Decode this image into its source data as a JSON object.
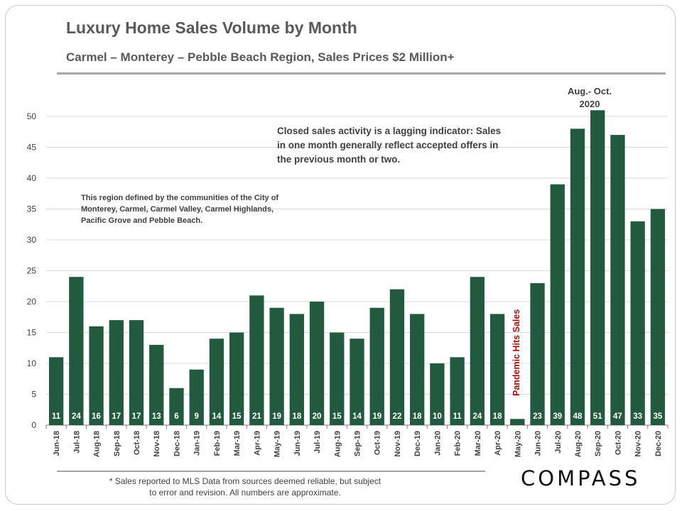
{
  "header": {
    "title": "Luxury Home Sales Volume by Month",
    "subtitle": "Carmel – Monterey – Pebble Beach Region, Sales Prices $2 Million+"
  },
  "annotations": {
    "lagging": "Closed sales activity is a lagging indicator: Sales in one month generally reflect accepted offers in the previous month or two.",
    "region": "This region defined by the communities of the City of Monterey, Carmel, Carmel Valley, Carmel Highlands, Pacific Grove and Pebble Beach.",
    "pandemic": "Pandemic Hits Sales",
    "peak_line1": "Aug.- Oct.",
    "peak_line2": "2020"
  },
  "footer": {
    "footnote": "* Sales reported to MLS Data from sources deemed reliable, but subject to error and revision. All numbers are approximate.",
    "logo": "COMPASS"
  },
  "colors": {
    "bar": "#215a3f",
    "pandemic_text": "#a50d0d"
  },
  "chart_data": {
    "type": "bar",
    "title": "Luxury Home Sales Volume by Month",
    "subtitle": "Carmel – Monterey – Pebble Beach Region, Sales Prices $2 Million+",
    "categories": [
      "Jun-18",
      "Jul-18",
      "Aug-18",
      "Sep-18",
      "Oct-18",
      "Nov-18",
      "Dec-18",
      "Jan-19",
      "Feb-19",
      "Mar-19",
      "Apr-19",
      "May-19",
      "Jun-19",
      "Jul-19",
      "Aug-19",
      "Sep-19",
      "Oct-19",
      "Nov-19",
      "Dec-19",
      "Jan-20",
      "Feb-20",
      "Mar-20",
      "Apr-20",
      "May-20",
      "Jun-20",
      "Jul-20",
      "Aug-20",
      "Sep-20",
      "Oct-20",
      "Nov-20",
      "Dec-20"
    ],
    "values": [
      11,
      24,
      16,
      17,
      17,
      13,
      6,
      9,
      14,
      15,
      21,
      19,
      18,
      20,
      15,
      14,
      19,
      22,
      18,
      10,
      11,
      24,
      18,
      1,
      23,
      39,
      48,
      51,
      47,
      33,
      35
    ],
    "ylim": [
      0,
      50
    ],
    "yticks": [
      0,
      5,
      10,
      15,
      20,
      25,
      30,
      35,
      40,
      45,
      50
    ],
    "grid": true,
    "data_labels": "inside-base"
  }
}
